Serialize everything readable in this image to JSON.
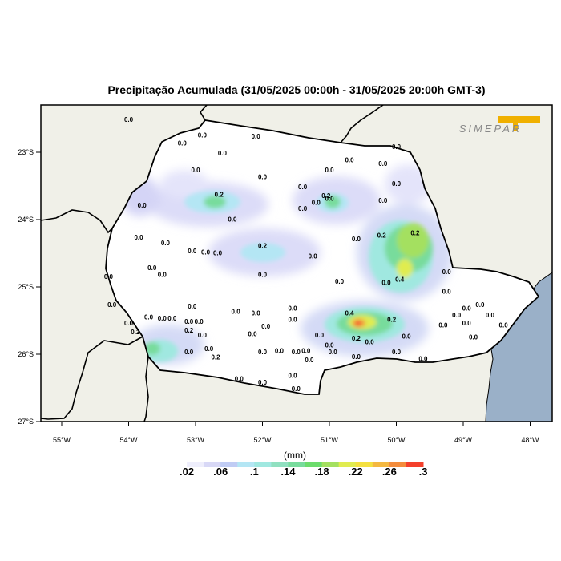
{
  "title": "Precipitação Acumulada (31/05/2025 00:00h - 31/05/2025 20:00h GMT-3)",
  "logo_text": "SIMEPAR",
  "lat_labels": [
    "23°S",
    "24°S",
    "25°S",
    "26°S",
    "27°S"
  ],
  "lon_labels": [
    "55°W",
    "54°W",
    "53°W",
    "52°W",
    "51°W",
    "50°W",
    "49°W",
    "48°W"
  ],
  "legend": {
    "unit": "(mm)",
    "labels": [
      ".02",
      ".06",
      ".1",
      ".14",
      ".18",
      ".22",
      ".26",
      ".3"
    ],
    "colors": [
      "#ffffff",
      "#eeeefc",
      "#d8d8f6",
      "#c0ccf4",
      "#b4e6f4",
      "#a0e8e0",
      "#90e0c0",
      "#78dc9c",
      "#6cdc6c",
      "#a4e060",
      "#e0ec50",
      "#f4e040",
      "#f4b840",
      "#f48c3c",
      "#f4402c"
    ]
  },
  "colors": {
    "ocean": "#9ab0c8",
    "land": "#f0f0e8",
    "state": "#ffffff"
  },
  "stations": [
    {
      "t": "0.0",
      "lon": -54.0,
      "lat": -22.55
    },
    {
      "t": "0.0",
      "lon": -52.9,
      "lat": -22.78
    },
    {
      "t": "0.0",
      "lon": -52.1,
      "lat": -22.8
    },
    {
      "t": "0.0",
      "lon": -53.2,
      "lat": -22.9
    },
    {
      "t": "0.0",
      "lon": -52.6,
      "lat": -23.05
    },
    {
      "t": "0.0",
      "lon": -53.0,
      "lat": -23.3
    },
    {
      "t": "0.0",
      "lon": -52.0,
      "lat": -23.4
    },
    {
      "t": "0.0",
      "lon": -51.4,
      "lat": -23.55
    },
    {
      "t": "0.0",
      "lon": -51.0,
      "lat": -23.3
    },
    {
      "t": "0.0",
      "lon": -50.7,
      "lat": -23.15
    },
    {
      "t": "0.0",
      "lon": -50.2,
      "lat": -23.2
    },
    {
      "t": "0.0",
      "lon": -50.0,
      "lat": -22.95
    },
    {
      "t": "0.0",
      "lon": -50.0,
      "lat": -23.5
    },
    {
      "t": "0.2",
      "lon": -52.65,
      "lat": -23.66
    },
    {
      "t": "0.0",
      "lon": -53.8,
      "lat": -23.82
    },
    {
      "t": "0.0",
      "lon": -52.45,
      "lat": -24.03
    },
    {
      "t": "0.0",
      "lon": -51.4,
      "lat": -23.87
    },
    {
      "t": "0.0",
      "lon": -51.2,
      "lat": -23.78
    },
    {
      "t": "0.0",
      "lon": -51.0,
      "lat": -23.72
    },
    {
      "t": "0.0",
      "lon": -50.2,
      "lat": -23.75
    },
    {
      "t": "0.2",
      "lon": -51.05,
      "lat": -23.68
    },
    {
      "t": "0.0",
      "lon": -53.85,
      "lat": -24.3
    },
    {
      "t": "0.0",
      "lon": -53.45,
      "lat": -24.38
    },
    {
      "t": "0.0",
      "lon": -53.05,
      "lat": -24.5
    },
    {
      "t": "0.0",
      "lon": -52.85,
      "lat": -24.52
    },
    {
      "t": "0.0",
      "lon": -52.67,
      "lat": -24.53
    },
    {
      "t": "0.2",
      "lon": -52.0,
      "lat": -24.42
    },
    {
      "t": "0.0",
      "lon": -51.25,
      "lat": -24.58
    },
    {
      "t": "0.0",
      "lon": -50.6,
      "lat": -24.32
    },
    {
      "t": "0.2",
      "lon": -50.22,
      "lat": -24.27
    },
    {
      "t": "0.2",
      "lon": -49.72,
      "lat": -24.23
    },
    {
      "t": "0.0",
      "lon": -53.65,
      "lat": -24.75
    },
    {
      "t": "0.0",
      "lon": -53.5,
      "lat": -24.85
    },
    {
      "t": "0.0",
      "lon": -52.0,
      "lat": -24.85
    },
    {
      "t": "0.0",
      "lon": -54.3,
      "lat": -24.88
    },
    {
      "t": "0.0",
      "lon": -50.85,
      "lat": -24.95
    },
    {
      "t": "0.0",
      "lon": -50.15,
      "lat": -24.97
    },
    {
      "t": "0.4",
      "lon": -49.95,
      "lat": -24.92
    },
    {
      "t": "0.0",
      "lon": -49.25,
      "lat": -24.81
    },
    {
      "t": "0.0",
      "lon": -54.25,
      "lat": -25.3
    },
    {
      "t": "0.0",
      "lon": -53.05,
      "lat": -25.32
    },
    {
      "t": "0.0",
      "lon": -52.4,
      "lat": -25.4
    },
    {
      "t": "0.0",
      "lon": -52.1,
      "lat": -25.42
    },
    {
      "t": "0.0",
      "lon": -51.55,
      "lat": -25.35
    },
    {
      "t": "0.4",
      "lon": -50.7,
      "lat": -25.42
    },
    {
      "t": "0.2",
      "lon": -50.07,
      "lat": -25.52
    },
    {
      "t": "0.0",
      "lon": -49.25,
      "lat": -25.1
    },
    {
      "t": "0.0",
      "lon": -54.0,
      "lat": -25.57
    },
    {
      "t": "0.0",
      "lon": -53.7,
      "lat": -25.48
    },
    {
      "t": "0.0",
      "lon": -53.5,
      "lat": -25.5
    },
    {
      "t": "0.0",
      "lon": -53.35,
      "lat": -25.5
    },
    {
      "t": "0.0",
      "lon": -53.1,
      "lat": -25.55
    },
    {
      "t": "0.0",
      "lon": -52.95,
      "lat": -25.55
    },
    {
      "t": "0.2",
      "lon": -53.9,
      "lat": -25.7
    },
    {
      "t": "0.2",
      "lon": -53.1,
      "lat": -25.68
    },
    {
      "t": "0.0",
      "lon": -52.9,
      "lat": -25.75
    },
    {
      "t": "0.0",
      "lon": -52.15,
      "lat": -25.73
    },
    {
      "t": "0.0",
      "lon": -51.95,
      "lat": -25.62
    },
    {
      "t": "0.0",
      "lon": -51.55,
      "lat": -25.52
    },
    {
      "t": "0.0",
      "lon": -51.15,
      "lat": -25.75
    },
    {
      "t": "0.0",
      "lon": -50.4,
      "lat": -25.85
    },
    {
      "t": "0.2",
      "lon": -50.6,
      "lat": -25.8
    },
    {
      "t": "0.0",
      "lon": -49.85,
      "lat": -25.77
    },
    {
      "t": "0.0",
      "lon": -49.3,
      "lat": -25.6
    },
    {
      "t": "0.0",
      "lon": -49.1,
      "lat": -25.45
    },
    {
      "t": "0.0",
      "lon": -48.95,
      "lat": -25.35
    },
    {
      "t": "0.0",
      "lon": -48.75,
      "lat": -25.3
    },
    {
      "t": "0.0",
      "lon": -48.6,
      "lat": -25.45
    },
    {
      "t": "0.0",
      "lon": -48.4,
      "lat": -25.6
    },
    {
      "t": "0.0",
      "lon": -48.85,
      "lat": -25.78
    },
    {
      "t": "0.0",
      "lon": -48.95,
      "lat": -25.57
    },
    {
      "t": "0.0",
      "lon": -53.1,
      "lat": -26.0
    },
    {
      "t": "0.0",
      "lon": -52.8,
      "lat": -25.95
    },
    {
      "t": "0.2",
      "lon": -52.7,
      "lat": -26.08
    },
    {
      "t": "0.0",
      "lon": -52.0,
      "lat": -26.0
    },
    {
      "t": "0.0",
      "lon": -51.75,
      "lat": -25.98
    },
    {
      "t": "0.0",
      "lon": -51.5,
      "lat": -26.0
    },
    {
      "t": "0.0",
      "lon": -51.35,
      "lat": -25.98
    },
    {
      "t": "0.0",
      "lon": -51.3,
      "lat": -26.12
    },
    {
      "t": "0.0",
      "lon": -51.0,
      "lat": -25.9
    },
    {
      "t": "0.0",
      "lon": -50.95,
      "lat": -26.0
    },
    {
      "t": "0.0",
      "lon": -50.6,
      "lat": -26.07
    },
    {
      "t": "0.0",
      "lon": -50.0,
      "lat": -26.0
    },
    {
      "t": "0.0",
      "lon": -49.6,
      "lat": -26.1
    },
    {
      "t": "0.0",
      "lon": -52.35,
      "lat": -26.4
    },
    {
      "t": "0.0",
      "lon": -52.0,
      "lat": -26.45
    },
    {
      "t": "0.0",
      "lon": -51.55,
      "lat": -26.35
    },
    {
      "t": "0.0",
      "lon": -51.5,
      "lat": -26.55
    }
  ]
}
